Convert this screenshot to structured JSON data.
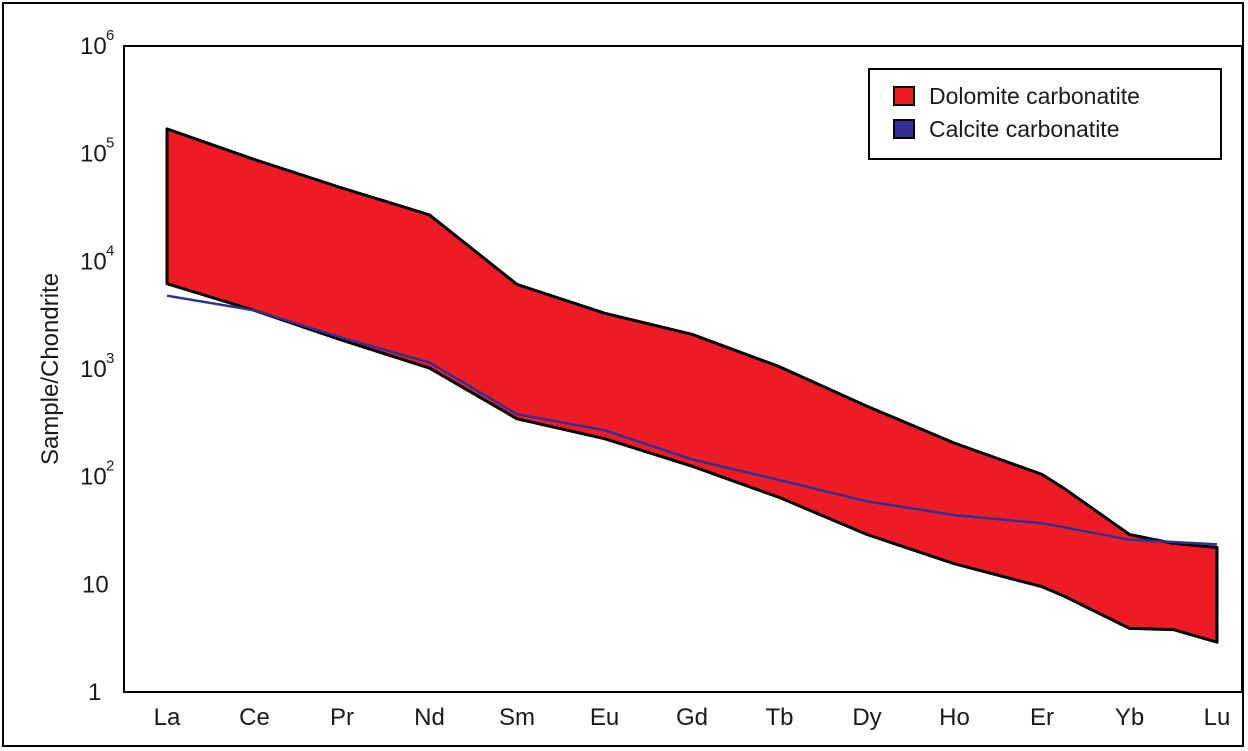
{
  "chart_data": {
    "type": "area",
    "title": "",
    "xlabel": "",
    "ylabel": "Sample/Chondrite",
    "yscale": "log",
    "ylim": [
      1,
      1000000
    ],
    "grid": false,
    "legend_position": "top-right",
    "categories": [
      "La",
      "Ce",
      "Pr",
      "Nd",
      "Sm",
      "Eu",
      "Gd",
      "Tb",
      "Dy",
      "Ho",
      "Er",
      "Yb",
      "Lu"
    ],
    "y_ticks": [
      {
        "base": "10",
        "exp": "6",
        "value": 1000000
      },
      {
        "base": "10",
        "exp": "5",
        "value": 100000
      },
      {
        "base": "10",
        "exp": "4",
        "value": 10000
      },
      {
        "base": "10",
        "exp": "3",
        "value": 1000
      },
      {
        "base": "10",
        "exp": "2",
        "value": 100
      },
      {
        "base": "10",
        "exp": "",
        "value": 10
      },
      {
        "base": "1",
        "exp": "",
        "value": 1
      }
    ],
    "series": [
      {
        "name": "Dolomite carbonatite",
        "kind": "band",
        "color": "#ed1c24",
        "points": [
          {
            "x": 0,
            "upper": 170000,
            "lower": 6200
          },
          {
            "x": 1,
            "upper": 88000,
            "lower": 3500
          },
          {
            "x": 2,
            "upper": 48000,
            "lower": 1850
          },
          {
            "x": 3,
            "upper": 27000,
            "lower": 1020
          },
          {
            "x": 4,
            "upper": 6100,
            "lower": 345
          },
          {
            "x": 5,
            "upper": 3300,
            "lower": 225
          },
          {
            "x": 6,
            "upper": 2100,
            "lower": 125
          },
          {
            "x": 7,
            "upper": 1050,
            "lower": 64
          },
          {
            "x": 8,
            "upper": 450,
            "lower": 29
          },
          {
            "x": 9,
            "upper": 205,
            "lower": 15.5
          },
          {
            "x": 10,
            "upper": 105,
            "lower": 9.5
          },
          {
            "x": 10.25,
            "upper": 78,
            "lower": 7.8
          },
          {
            "x": 11,
            "upper": 29,
            "lower": 3.9
          },
          {
            "x": 11.5,
            "upper": 24,
            "lower": 3.8
          },
          {
            "x": 12,
            "upper": 22,
            "lower": 2.9
          }
        ]
      },
      {
        "name": "Calcite carbonatite",
        "kind": "line",
        "color": "#2e3192",
        "points": [
          {
            "x": 0,
            "y": 4800
          },
          {
            "x": 1,
            "y": 3500
          },
          {
            "x": 2,
            "y": 1950
          },
          {
            "x": 3,
            "y": 1150
          },
          {
            "x": 4,
            "y": 380
          },
          {
            "x": 5,
            "y": 270
          },
          {
            "x": 6,
            "y": 145
          },
          {
            "x": 7,
            "y": 93
          },
          {
            "x": 8,
            "y": 59
          },
          {
            "x": 9,
            "y": 44
          },
          {
            "x": 10,
            "y": 37
          },
          {
            "x": 11,
            "y": 26
          },
          {
            "x": 12,
            "y": 23.5
          }
        ]
      }
    ]
  }
}
